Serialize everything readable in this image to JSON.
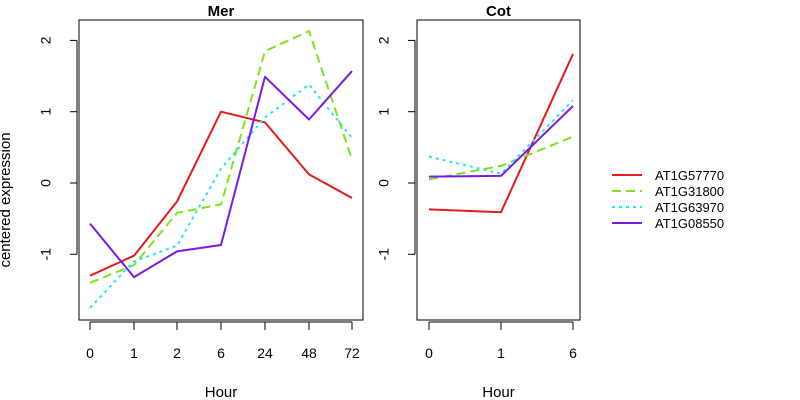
{
  "chart_data": [
    {
      "type": "line",
      "title": "Mer",
      "xlabel": "Hour",
      "ylabel": "centered expression",
      "categories": [
        "0",
        "1",
        "2",
        "6",
        "24",
        "48",
        "72"
      ],
      "ylim": [
        -1.9,
        2.25
      ],
      "yticks": [
        -1,
        0,
        1,
        2
      ],
      "series": [
        {
          "name": "AT1G57770",
          "values": [
            -1.3,
            -1.02,
            -0.26,
            1.0,
            0.85,
            0.12,
            -0.21
          ]
        },
        {
          "name": "AT1G31800",
          "values": [
            -1.4,
            -1.15,
            -0.42,
            -0.3,
            1.85,
            2.13,
            0.33
          ]
        },
        {
          "name": "AT1G63970",
          "values": [
            -1.75,
            -1.1,
            -0.88,
            0.2,
            0.92,
            1.38,
            0.63
          ]
        },
        {
          "name": "AT1G08550",
          "values": [
            -0.57,
            -1.32,
            -0.96,
            -0.87,
            1.49,
            0.89,
            1.57
          ]
        }
      ]
    },
    {
      "type": "line",
      "title": "Cot",
      "xlabel": "Hour",
      "ylabel": "",
      "categories": [
        "0",
        "1",
        "6"
      ],
      "ylim": [
        -1.9,
        2.25
      ],
      "yticks": [
        -1,
        0,
        1,
        2
      ],
      "series": [
        {
          "name": "AT1G57770",
          "values": [
            -0.37,
            -0.41,
            1.81
          ]
        },
        {
          "name": "AT1G31800",
          "values": [
            0.05,
            0.24,
            0.65
          ]
        },
        {
          "name": "AT1G63970",
          "values": [
            0.37,
            0.13,
            1.16
          ]
        },
        {
          "name": "AT1G08550",
          "values": [
            0.09,
            0.1,
            1.08
          ]
        }
      ]
    }
  ],
  "legend": {
    "placement": "right",
    "items": [
      {
        "label": "AT1G57770",
        "color": "#e41a1c",
        "dash": "solid"
      },
      {
        "label": "AT1G31800",
        "color": "#7fe31c",
        "dash": "dashed"
      },
      {
        "label": "AT1G63970",
        "color": "#27e5e9",
        "dash": "dotted"
      },
      {
        "label": "AT1G08550",
        "color": "#7a1be3",
        "dash": "solid"
      }
    ]
  }
}
